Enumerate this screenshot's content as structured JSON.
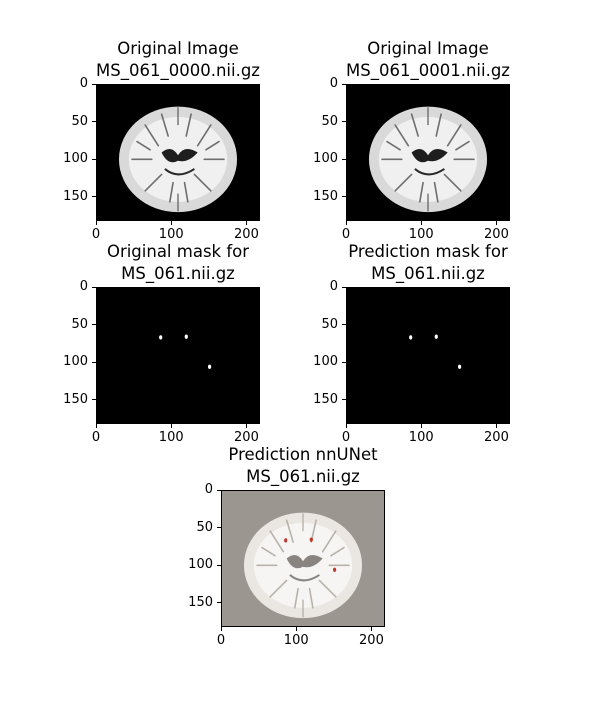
{
  "chart_data": [
    {
      "type": "image",
      "kind": "brain",
      "title_line1": "Original Image",
      "title_line2": "MS_061_0000.nii.gz",
      "yticks": [
        "0",
        "50",
        "100",
        "150"
      ],
      "xticks": [
        "0",
        "100",
        "200"
      ],
      "ytick_values": [
        0,
        50,
        100,
        150
      ],
      "xtick_values": [
        0,
        100,
        200
      ],
      "xlim": [
        0,
        218
      ],
      "ylim": [
        182,
        0
      ],
      "background": "#000000"
    },
    {
      "type": "image",
      "kind": "brain",
      "title_line1": "Original Image",
      "title_line2": "MS_061_0001.nii.gz",
      "yticks": [
        "0",
        "50",
        "100",
        "150"
      ],
      "xticks": [
        "0",
        "100",
        "200"
      ],
      "ytick_values": [
        0,
        50,
        100,
        150
      ],
      "xtick_values": [
        0,
        100,
        200
      ],
      "xlim": [
        0,
        218
      ],
      "ylim": [
        182,
        0
      ],
      "background": "#000000"
    },
    {
      "type": "image",
      "kind": "mask",
      "title_line1": "Original mask for",
      "title_line2": "MS_061.nii.gz",
      "yticks": [
        "0",
        "50",
        "100",
        "150"
      ],
      "xticks": [
        "0",
        "100",
        "200"
      ],
      "ytick_values": [
        0,
        50,
        100,
        150
      ],
      "xtick_values": [
        0,
        100,
        200
      ],
      "xlim": [
        0,
        218
      ],
      "ylim": [
        182,
        0
      ],
      "background": "#000000",
      "lesions": [
        [
          86,
          67
        ],
        [
          120,
          66
        ],
        [
          151,
          106
        ]
      ]
    },
    {
      "type": "image",
      "kind": "mask",
      "title_line1": "Prediction mask for",
      "title_line2": "MS_061.nii.gz",
      "yticks": [
        "0",
        "50",
        "100",
        "150"
      ],
      "xticks": [
        "0",
        "100",
        "200"
      ],
      "ytick_values": [
        0,
        50,
        100,
        150
      ],
      "xtick_values": [
        0,
        100,
        200
      ],
      "xlim": [
        0,
        218
      ],
      "ylim": [
        182,
        0
      ],
      "background": "#000000",
      "lesions": [
        [
          86,
          67
        ],
        [
          120,
          66
        ],
        [
          151,
          106
        ]
      ]
    },
    {
      "type": "image",
      "kind": "overlay",
      "title_line1": "Prediction nnUNet",
      "title_line2": "MS_061.nii.gz",
      "yticks": [
        "0",
        "50",
        "100",
        "150"
      ],
      "xticks": [
        "0",
        "100",
        "200"
      ],
      "ytick_values": [
        0,
        50,
        100,
        150
      ],
      "xtick_values": [
        0,
        100,
        200
      ],
      "xlim": [
        0,
        218
      ],
      "ylim": [
        182,
        0
      ],
      "background": "#9c9690",
      "lesion_color": "#c0392b",
      "lesions": [
        [
          86,
          67
        ],
        [
          120,
          66
        ],
        [
          151,
          106
        ]
      ]
    }
  ]
}
